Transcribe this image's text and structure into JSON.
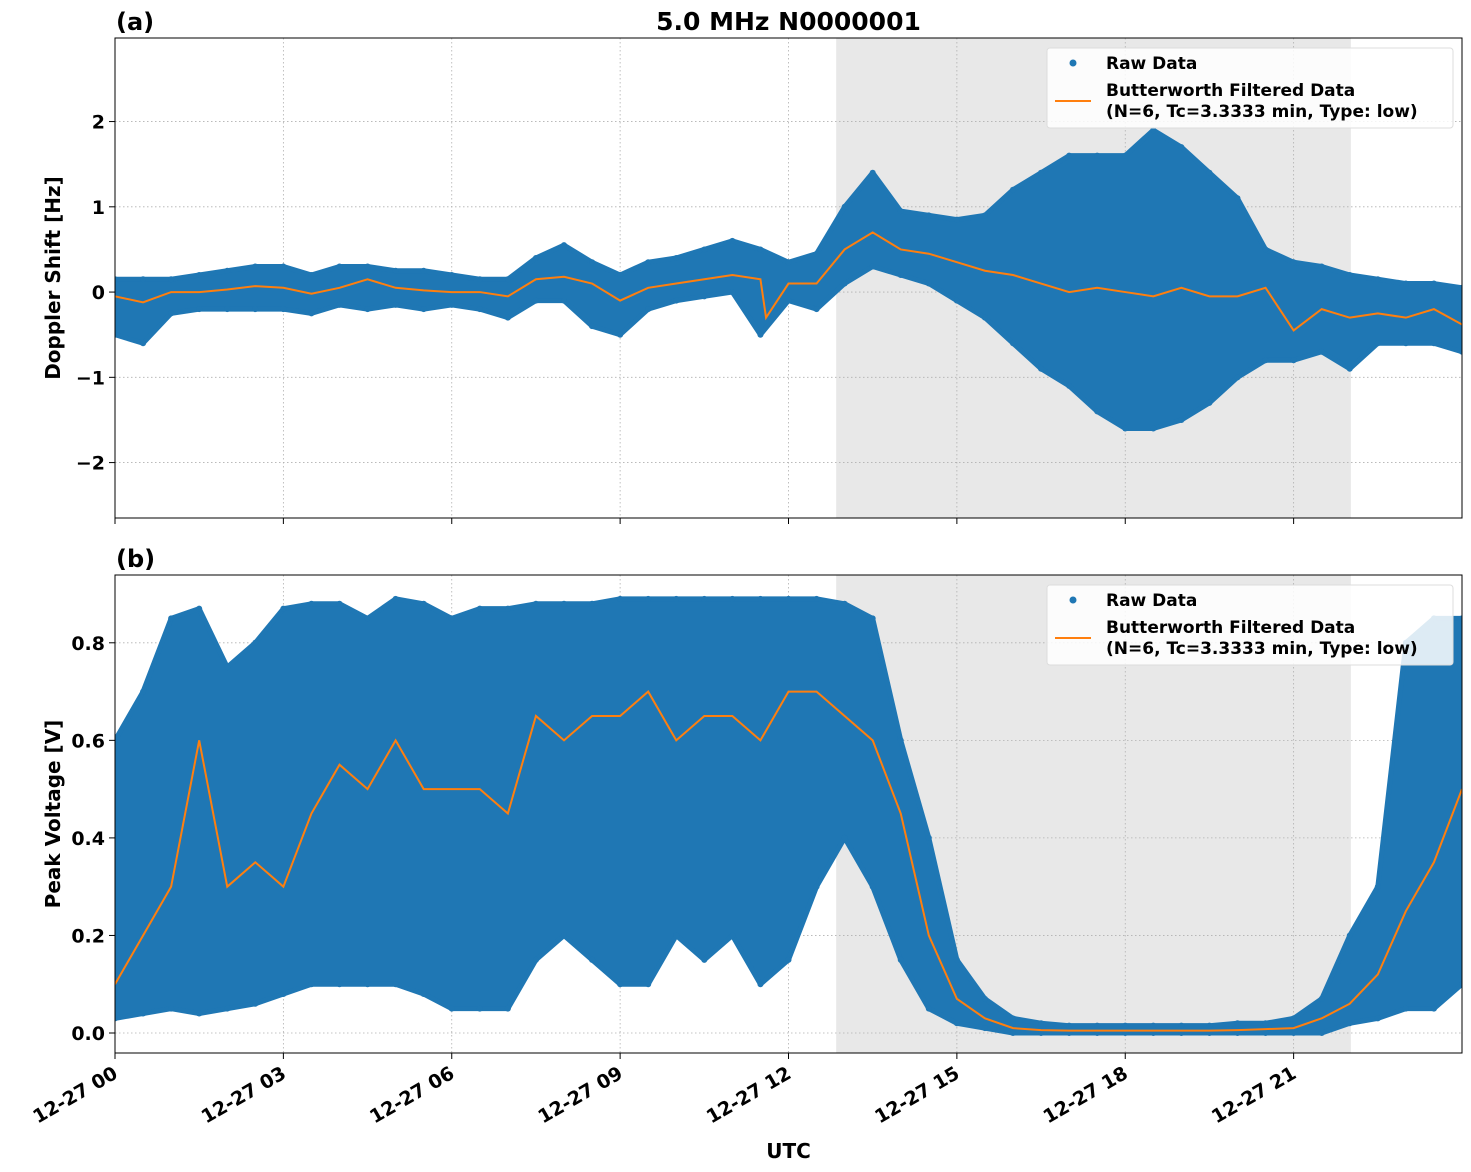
{
  "chart_data": [
    {
      "type": "scatter",
      "panel_label": "(a)",
      "title": "5.0 MHz N0000001",
      "ylabel": "Doppler Shift [Hz]",
      "xlabel": "",
      "xlim_hours": [
        0,
        24
      ],
      "ylim": [
        -2.65,
        2.98
      ],
      "yticks": [
        -2,
        -1,
        0,
        1,
        2
      ],
      "ytick_labels": [
        "−2",
        "−1",
        "0",
        "1",
        "2"
      ],
      "grid": true,
      "legend_placement": "top-right",
      "shaded_interval_hours": [
        12.85,
        22.02
      ],
      "series": [
        {
          "name": "Raw Data",
          "color": "#1f77b4",
          "kind": "scatter",
          "x_hours": [
            0,
            0.5,
            1,
            1.5,
            2,
            2.5,
            3,
            3.5,
            4,
            4.5,
            5,
            5.5,
            6,
            6.5,
            7,
            7.5,
            8,
            8.5,
            9,
            9.5,
            10,
            10.5,
            11,
            11.5,
            12,
            12.5,
            13,
            13.5,
            14,
            14.5,
            15,
            15.5,
            16,
            16.5,
            17,
            17.5,
            18,
            18.5,
            19,
            19.5,
            20,
            20.5,
            21,
            21.5,
            22,
            22.5,
            23,
            23.5,
            24
          ],
          "low": [
            -0.5,
            -0.6,
            -0.25,
            -0.2,
            -0.2,
            -0.2,
            -0.2,
            -0.25,
            -0.15,
            -0.2,
            -0.15,
            -0.2,
            -0.15,
            -0.2,
            -0.3,
            -0.1,
            -0.1,
            -0.4,
            -0.5,
            -0.2,
            -0.1,
            -0.05,
            0.0,
            -0.5,
            -0.1,
            -0.2,
            0.1,
            0.3,
            0.2,
            0.1,
            -0.1,
            -0.3,
            -0.6,
            -0.9,
            -1.1,
            -1.4,
            -1.6,
            -1.6,
            -1.5,
            -1.3,
            -1.0,
            -0.8,
            -0.8,
            -0.7,
            -0.9,
            -0.6,
            -0.6,
            -0.6,
            -0.7
          ],
          "high": [
            0.15,
            0.15,
            0.15,
            0.2,
            0.25,
            0.3,
            0.3,
            0.2,
            0.3,
            0.3,
            0.25,
            0.25,
            0.2,
            0.15,
            0.15,
            0.4,
            0.55,
            0.35,
            0.2,
            0.35,
            0.4,
            0.5,
            0.6,
            0.5,
            0.35,
            0.45,
            1.0,
            1.4,
            0.95,
            0.9,
            0.85,
            0.9,
            1.2,
            1.4,
            1.6,
            1.6,
            1.6,
            1.9,
            1.7,
            1.4,
            1.1,
            0.5,
            0.35,
            0.3,
            0.2,
            0.15,
            0.1,
            0.1,
            0.05
          ]
        },
        {
          "name": "Butterworth Filtered Data\n(N=6, Tc=3.3333 min, Type: low)",
          "color": "#ff7f0e",
          "kind": "line",
          "x_hours": [
            0,
            0.5,
            1,
            1.5,
            2,
            2.5,
            3,
            3.5,
            4,
            4.5,
            5,
            5.5,
            6,
            6.5,
            7,
            7.5,
            8,
            8.5,
            9,
            9.5,
            10,
            10.5,
            11,
            11.5,
            11.6,
            12,
            12.5,
            13,
            13.5,
            14,
            14.5,
            15,
            15.5,
            16,
            16.5,
            17,
            17.5,
            18,
            18.5,
            19,
            19.5,
            20,
            20.5,
            21,
            21.5,
            22,
            22.5,
            23,
            23.5,
            24
          ],
          "values": [
            -0.05,
            -0.12,
            0.0,
            0.0,
            0.03,
            0.07,
            0.05,
            -0.02,
            0.05,
            0.15,
            0.05,
            0.02,
            0.0,
            0.0,
            -0.05,
            0.15,
            0.18,
            0.1,
            -0.1,
            0.05,
            0.1,
            0.15,
            0.2,
            0.15,
            -0.3,
            0.1,
            0.1,
            0.5,
            0.7,
            0.5,
            0.45,
            0.35,
            0.25,
            0.2,
            0.1,
            0.0,
            0.05,
            0.0,
            -0.05,
            0.05,
            -0.05,
            -0.05,
            0.05,
            -0.45,
            -0.2,
            -0.3,
            -0.25,
            -0.3,
            -0.2,
            -0.38
          ]
        }
      ]
    },
    {
      "type": "scatter",
      "panel_label": "(b)",
      "title": "",
      "ylabel": "Peak Voltage [V]",
      "xlabel": "UTC",
      "xlim_hours": [
        0,
        24
      ],
      "ylim": [
        -0.041,
        0.939
      ],
      "yticks": [
        0.0,
        0.2,
        0.4,
        0.6,
        0.8
      ],
      "ytick_labels": [
        "0.0",
        "0.2",
        "0.4",
        "0.6",
        "0.8"
      ],
      "xticks_hours": [
        0,
        3,
        6,
        9,
        12,
        15,
        18,
        21
      ],
      "xtick_labels": [
        "12-27 00",
        "12-27 03",
        "12-27 06",
        "12-27 09",
        "12-27 12",
        "12-27 15",
        "12-27 18",
        "12-27 21"
      ],
      "grid": true,
      "legend_placement": "top-right",
      "shaded_interval_hours": [
        12.85,
        22.02
      ],
      "series": [
        {
          "name": "Raw Data",
          "color": "#1f77b4",
          "kind": "scatter",
          "x_hours": [
            0,
            0.5,
            1,
            1.5,
            2,
            2.5,
            3,
            3.5,
            4,
            4.5,
            5,
            5.5,
            6,
            6.5,
            7,
            7.5,
            8,
            8.5,
            9,
            9.5,
            10,
            10.5,
            11,
            11.5,
            12,
            12.5,
            13,
            13.5,
            14,
            14.5,
            15,
            15.5,
            16,
            16.5,
            17,
            17.5,
            18,
            18.5,
            19,
            19.5,
            20,
            20.5,
            21,
            21.5,
            22,
            22.5,
            23,
            23.5,
            24
          ],
          "low": [
            0.03,
            0.04,
            0.05,
            0.04,
            0.05,
            0.06,
            0.08,
            0.1,
            0.1,
            0.1,
            0.1,
            0.08,
            0.05,
            0.05,
            0.05,
            0.15,
            0.2,
            0.15,
            0.1,
            0.1,
            0.2,
            0.15,
            0.2,
            0.1,
            0.15,
            0.3,
            0.4,
            0.3,
            0.15,
            0.05,
            0.02,
            0.01,
            0.0,
            0.0,
            0.0,
            0.0,
            0.0,
            0.0,
            0.0,
            0.0,
            0.0,
            0.0,
            0.0,
            0.0,
            0.02,
            0.03,
            0.05,
            0.05,
            0.1
          ],
          "high": [
            0.6,
            0.7,
            0.85,
            0.87,
            0.75,
            0.8,
            0.87,
            0.88,
            0.88,
            0.85,
            0.89,
            0.88,
            0.85,
            0.87,
            0.87,
            0.88,
            0.88,
            0.88,
            0.89,
            0.89,
            0.89,
            0.89,
            0.89,
            0.89,
            0.89,
            0.89,
            0.88,
            0.85,
            0.6,
            0.4,
            0.15,
            0.07,
            0.03,
            0.02,
            0.015,
            0.015,
            0.015,
            0.015,
            0.015,
            0.015,
            0.02,
            0.02,
            0.03,
            0.07,
            0.2,
            0.3,
            0.8,
            0.85,
            0.85
          ]
        },
        {
          "name": "Butterworth Filtered Data\n(N=6, Tc=3.3333 min, Type: low)",
          "color": "#ff7f0e",
          "kind": "line",
          "x_hours": [
            0,
            0.5,
            1,
            1.5,
            2,
            2.5,
            3,
            3.5,
            4,
            4.5,
            5,
            5.5,
            6,
            6.5,
            7,
            7.5,
            8,
            8.5,
            9,
            9.5,
            10,
            10.5,
            11,
            11.5,
            12,
            12.5,
            13,
            13.5,
            14,
            14.5,
            15,
            15.5,
            16,
            16.5,
            17,
            17.5,
            18,
            18.5,
            19,
            19.5,
            20,
            20.5,
            21,
            21.5,
            22,
            22.5,
            23,
            23.5,
            24
          ],
          "values": [
            0.1,
            0.2,
            0.3,
            0.6,
            0.3,
            0.35,
            0.3,
            0.45,
            0.55,
            0.5,
            0.6,
            0.5,
            0.5,
            0.5,
            0.45,
            0.65,
            0.6,
            0.65,
            0.65,
            0.7,
            0.6,
            0.65,
            0.65,
            0.6,
            0.7,
            0.7,
            0.65,
            0.6,
            0.45,
            0.2,
            0.07,
            0.03,
            0.01,
            0.006,
            0.005,
            0.005,
            0.005,
            0.005,
            0.005,
            0.005,
            0.006,
            0.008,
            0.01,
            0.03,
            0.06,
            0.12,
            0.25,
            0.35,
            0.5
          ]
        }
      ]
    }
  ]
}
